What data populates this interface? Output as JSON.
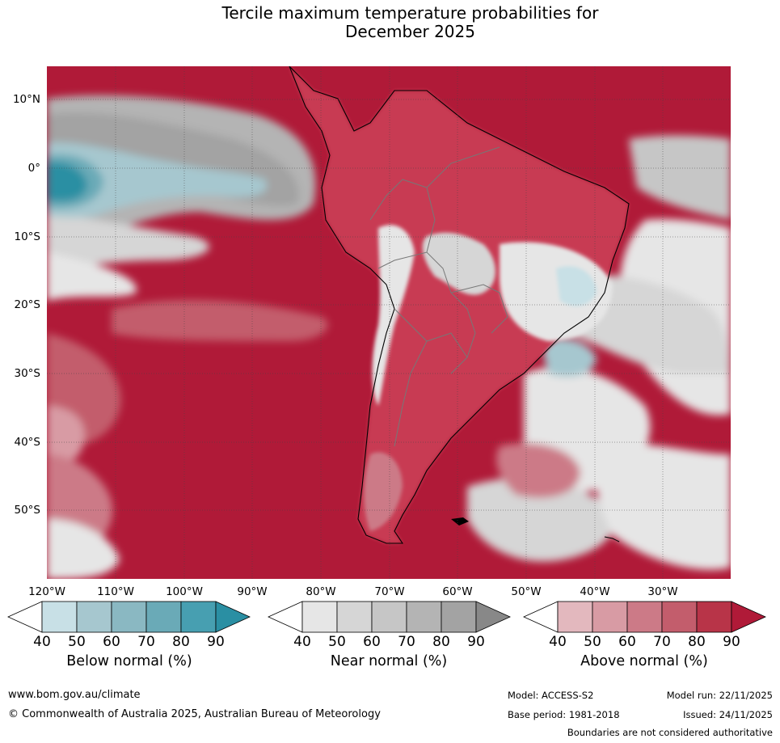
{
  "title": {
    "line1": "Tercile maximum temperature probabilities for",
    "line2": "December 2025"
  },
  "map": {
    "lat_labels": [
      "10°N",
      "0°",
      "10°S",
      "20°S",
      "30°S",
      "40°S",
      "50°S"
    ],
    "lon_labels": [
      "120°W",
      "110°W",
      "100°W",
      "90°W",
      "80°W",
      "70°W",
      "60°W",
      "50°W",
      "40°W",
      "30°W"
    ],
    "colors": {
      "above": [
        "#e3b8be",
        "#d89ba4",
        "#cc7a87",
        "#c35d6c",
        "#b83448",
        "#b01a38"
      ],
      "near": [
        "#e6e6e6",
        "#d6d6d6",
        "#c6c6c6",
        "#b4b4b4",
        "#a3a3a3",
        "#8a8a8a"
      ],
      "below": [
        "#c8e0e6",
        "#a6c7cf",
        "#8ab8c2",
        "#6aaab7",
        "#479fb1",
        "#2a8fa3"
      ],
      "land": "#c83a52",
      "ocean_base": "#b01a38"
    }
  },
  "colorbars": [
    {
      "label": "Below normal (%)",
      "ticks": [
        "40",
        "50",
        "60",
        "70",
        "80",
        "90"
      ],
      "colors": [
        "#ffffff",
        "#c8e0e6",
        "#a6c7cf",
        "#8ab8c2",
        "#6aaab7",
        "#479fb1",
        "#2a8fa3"
      ]
    },
    {
      "label": "Near normal (%)",
      "ticks": [
        "40",
        "50",
        "60",
        "70",
        "80",
        "90"
      ],
      "colors": [
        "#ffffff",
        "#e6e6e6",
        "#d6d6d6",
        "#c6c6c6",
        "#b4b4b4",
        "#a3a3a3",
        "#888888"
      ]
    },
    {
      "label": "Above normal (%)",
      "ticks": [
        "40",
        "50",
        "60",
        "70",
        "80",
        "90"
      ],
      "colors": [
        "#ffffff",
        "#e3b8be",
        "#d89ba4",
        "#cc7a87",
        "#c35d6c",
        "#b83448",
        "#b01a38"
      ]
    }
  ],
  "footer": {
    "website": "www.bom.gov.au/climate",
    "copyright": "© Commonwealth of Australia 2025, Australian Bureau of Meteorology",
    "model": "Model: ACCESS-S2",
    "model_run": "Model run: 22/11/2025",
    "base_period": "Base period: 1981-2018",
    "issued": "Issued: 24/11/2025",
    "disclaimer": "Boundaries are not considered authoritative"
  }
}
